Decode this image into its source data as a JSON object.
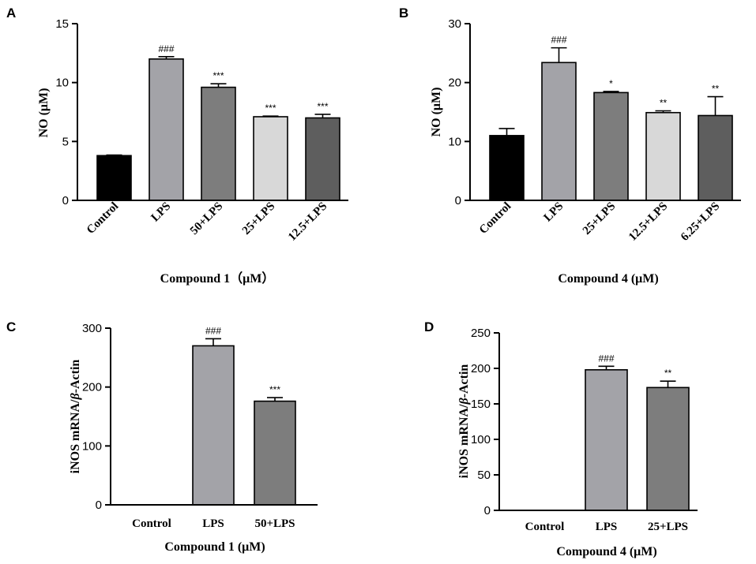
{
  "chart_data": [
    {
      "panel": "A",
      "type": "bar",
      "title": "",
      "xlabel": "Compound 1（μM）",
      "ylabel": "NO (μM)",
      "ylim": [
        0,
        15
      ],
      "yticks": [
        "0",
        "5",
        "10",
        "15"
      ],
      "grid": false,
      "categories": [
        "Control",
        "LPS",
        "50+LPS",
        "25+LPS",
        "12.5+LPS"
      ],
      "values": [
        3.8,
        12.0,
        9.6,
        7.1,
        7.0
      ],
      "errors": [
        0.05,
        0.2,
        0.3,
        0.05,
        0.3
      ],
      "annotations": [
        "",
        "###",
        "***",
        "***",
        "***"
      ],
      "colors": [
        "#000000",
        "#a3a3a8",
        "#7d7d7d",
        "#d8d8d8",
        "#5e5e5e"
      ]
    },
    {
      "panel": "B",
      "type": "bar",
      "title": "",
      "xlabel": "Compound 4  (μM)",
      "ylabel": "NO (μM)",
      "ylim": [
        0,
        30
      ],
      "yticks": [
        "0",
        "10",
        "20",
        "30"
      ],
      "grid": false,
      "categories": [
        "Control",
        "LPS",
        "25+LPS",
        "12.5+LPS",
        "6.25+LPS"
      ],
      "values": [
        11.0,
        23.4,
        18.3,
        14.9,
        14.4
      ],
      "errors": [
        1.2,
        2.5,
        0.2,
        0.3,
        3.2
      ],
      "annotations": [
        "",
        "###",
        "*",
        "**",
        "**"
      ],
      "colors": [
        "#000000",
        "#a3a3a8",
        "#7d7d7d",
        "#d8d8d8",
        "#5e5e5e"
      ]
    },
    {
      "panel": "C",
      "type": "bar",
      "title": "",
      "xlabel": "Compound 1 (μM)",
      "ylabel_prefix": "iNOS mRNA/",
      "ylabel_italic": "β",
      "ylabel_suffix": "-Actin",
      "ylim": [
        0,
        300
      ],
      "yticks": [
        "0",
        "100",
        "200",
        "300"
      ],
      "grid": false,
      "categories": [
        "Control",
        "LPS",
        "50+LPS"
      ],
      "values": [
        0,
        270,
        176
      ],
      "errors": [
        0,
        12,
        6
      ],
      "annotations": [
        "",
        "###",
        "***"
      ],
      "colors": [
        "#000000",
        "#a3a3a8",
        "#7d7d7d"
      ]
    },
    {
      "panel": "D",
      "type": "bar",
      "title": "",
      "xlabel": "Compound 4 (μM)",
      "ylabel_prefix": "iNOS mRNA/",
      "ylabel_italic": "β",
      "ylabel_suffix": "-Actin",
      "ylim": [
        0,
        250
      ],
      "yticks": [
        "0",
        "50",
        "100",
        "150",
        "200",
        "250"
      ],
      "grid": false,
      "categories": [
        "Control",
        "LPS",
        "25+LPS"
      ],
      "values": [
        0,
        198,
        173
      ],
      "errors": [
        0,
        5,
        9
      ],
      "annotations": [
        "",
        "###",
        "**"
      ],
      "colors": [
        "#000000",
        "#a3a3a8",
        "#7d7d7d"
      ]
    }
  ]
}
